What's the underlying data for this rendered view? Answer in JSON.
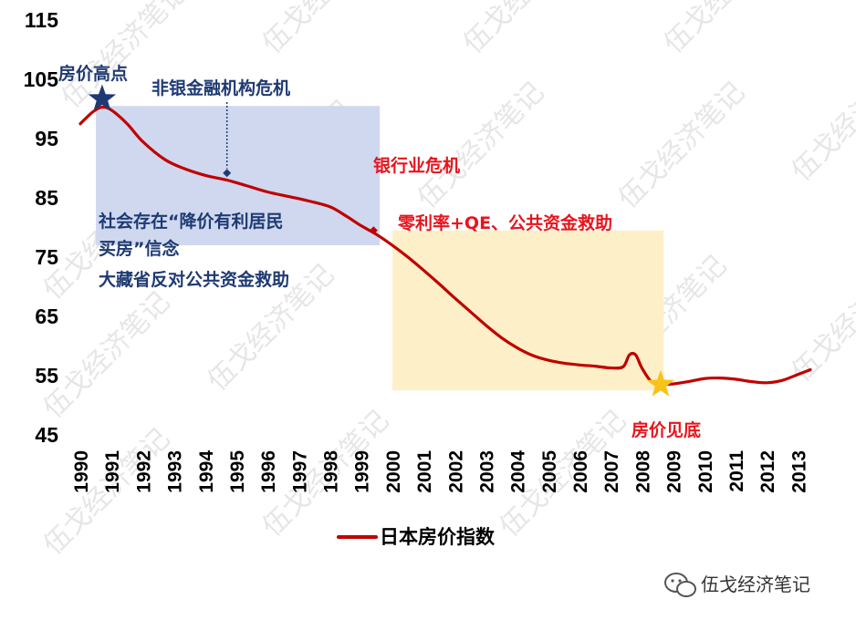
{
  "chart_data": {
    "type": "line",
    "title": "",
    "xlabel": "",
    "ylabel": "",
    "ylim": [
      45,
      115
    ],
    "y_ticks": [
      115,
      105,
      95,
      85,
      75,
      65,
      55,
      45
    ],
    "x_ticks": [
      "1990",
      "1991",
      "1992",
      "1993",
      "1994",
      "1995",
      "1996",
      "1997",
      "1998",
      "1999",
      "2000",
      "2001",
      "2002",
      "2003",
      "2004",
      "2005",
      "2006",
      "2007",
      "2008",
      "2009",
      "2010",
      "2011",
      "2012",
      "2013"
    ],
    "xlim": [
      1990,
      2013.4
    ],
    "grid": false,
    "legend": "bottom",
    "series": [
      {
        "name": "日本房价指数",
        "color": "#c00000",
        "points": [
          [
            1990.0,
            97.5
          ],
          [
            1990.4,
            99.5
          ],
          [
            1990.7,
            100.3
          ],
          [
            1991.0,
            99.8
          ],
          [
            1991.5,
            97.5
          ],
          [
            1992.0,
            94.5
          ],
          [
            1992.7,
            91.5
          ],
          [
            1993.3,
            90.0
          ],
          [
            1994.0,
            88.8
          ],
          [
            1994.7,
            88.0
          ],
          [
            1995.3,
            87.1
          ],
          [
            1996.0,
            86.0
          ],
          [
            1996.7,
            85.2
          ],
          [
            1997.3,
            84.5
          ],
          [
            1998.0,
            83.5
          ],
          [
            1998.5,
            82.0
          ],
          [
            1999.0,
            80.3
          ],
          [
            1999.5,
            78.8
          ],
          [
            2000.0,
            77.0
          ],
          [
            2000.5,
            75.0
          ],
          [
            2001.0,
            72.8
          ],
          [
            2001.5,
            70.5
          ],
          [
            2002.0,
            68.1
          ],
          [
            2002.5,
            65.8
          ],
          [
            2003.0,
            63.5
          ],
          [
            2003.5,
            61.4
          ],
          [
            2004.0,
            59.7
          ],
          [
            2004.5,
            58.4
          ],
          [
            2005.0,
            57.6
          ],
          [
            2005.5,
            57.1
          ],
          [
            2006.0,
            56.8
          ],
          [
            2006.5,
            56.6
          ],
          [
            2007.0,
            56.3
          ],
          [
            2007.4,
            56.5
          ],
          [
            2007.6,
            58.5
          ],
          [
            2007.8,
            58.5
          ],
          [
            2008.0,
            56.3
          ],
          [
            2008.3,
            54.0
          ],
          [
            2008.6,
            53.5
          ],
          [
            2009.0,
            53.6
          ],
          [
            2009.5,
            54.0
          ],
          [
            2010.0,
            54.5
          ],
          [
            2010.5,
            54.6
          ],
          [
            2011.0,
            54.4
          ],
          [
            2011.5,
            54.0
          ],
          [
            2012.0,
            53.8
          ],
          [
            2012.5,
            54.2
          ],
          [
            2013.0,
            55.2
          ],
          [
            2013.4,
            56.0
          ]
        ]
      }
    ],
    "regions": [
      {
        "x0": 1990.5,
        "x1": 1999.6,
        "y0": 77.0,
        "y1": 100.5,
        "color": "#cfd8ef"
      },
      {
        "x0": 2000.0,
        "x1": 2008.7,
        "y0": 52.5,
        "y1": 79.5,
        "color": "#fdf0c8"
      }
    ],
    "markers": [
      {
        "x": 1990.7,
        "y": 101.7,
        "shape": "star",
        "color": "#1f3a73"
      },
      {
        "x": 2008.6,
        "y": 53.5,
        "shape": "star",
        "color": "#f8c318"
      },
      {
        "x": 1994.7,
        "y": 89.2,
        "shape": "diamond",
        "color": "#1f3a73"
      },
      {
        "x": 1999.4,
        "y": 79.5,
        "shape": "diamond",
        "color": "#c00000"
      }
    ],
    "annotations": {
      "peak": "房价高点",
      "nonbank_crisis": "非银金融机构危机",
      "bank_crisis": "银行业危机",
      "policy": "零利率+QE、公共资金救助",
      "belief_line1": "社会存在“降价有利居民",
      "belief_line2": "买房”信念",
      "belief_line3": "大藏省反对公共资金救助",
      "bottom": "房价见底"
    }
  },
  "watermark": "伍戈经济笔记",
  "brand": {
    "name": "伍戈经济笔记",
    "icon": "wechat-icon"
  }
}
